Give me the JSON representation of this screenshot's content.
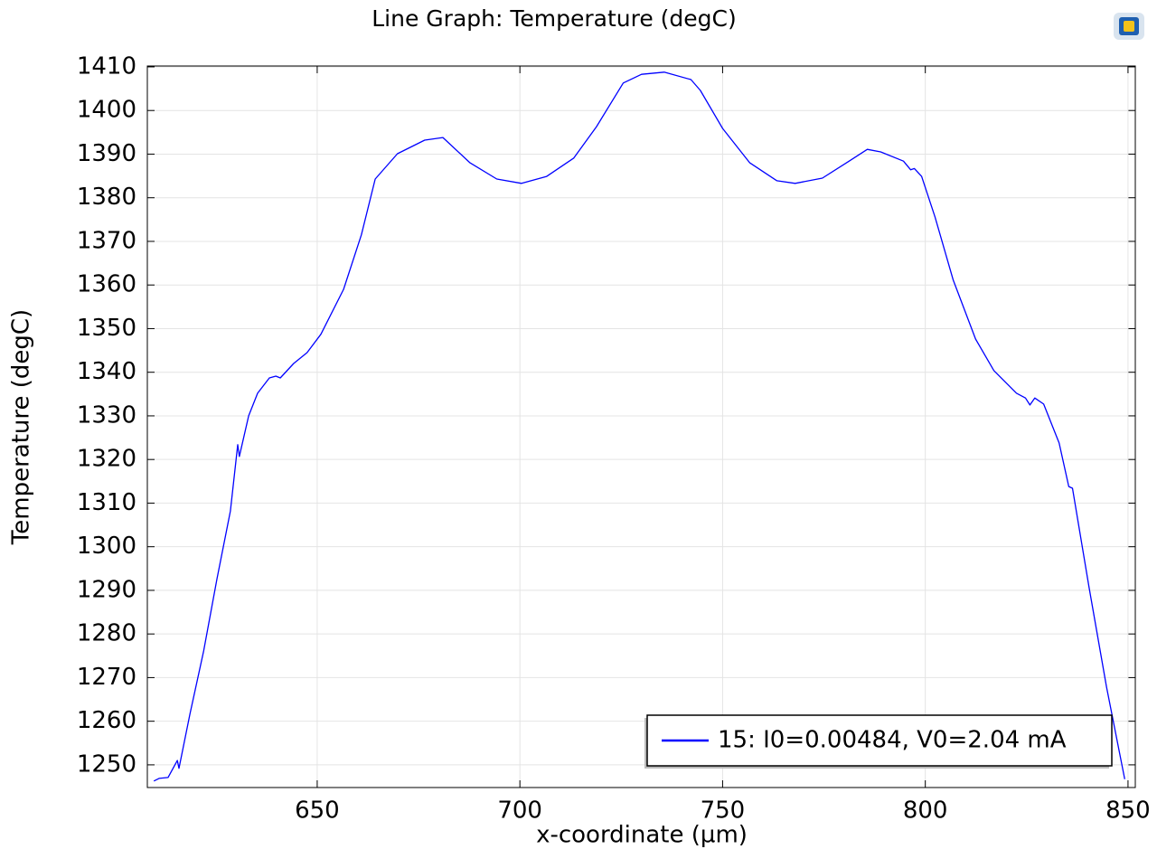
{
  "chart_data": {
    "type": "line",
    "title": "Line Graph: Temperature (degC)",
    "x_label": "x-coordinate (µm)",
    "y_label": "Temperature (degC)",
    "x": [
      609.7,
      611.0,
      613.2,
      615.5,
      615.9,
      618.6,
      622.0,
      625.3,
      628.6,
      630.2,
      630.4,
      630.8,
      633.1,
      635.3,
      638.2,
      639.8,
      640.9,
      644.2,
      647.5,
      650.9,
      656.5,
      660.9,
      664.3,
      669.8,
      676.5,
      681.0,
      687.7,
      694.3,
      700.4,
      706.6,
      713.3,
      718.9,
      725.5,
      730.0,
      735.6,
      742.2,
      744.5,
      750.0,
      756.7,
      763.4,
      767.9,
      774.6,
      781.2,
      785.7,
      789.0,
      794.6,
      796.4,
      797.3,
      799.1,
      802.4,
      806.9,
      812.4,
      816.9,
      822.5,
      824.7,
      825.8,
      827.0,
      829.2,
      833.0,
      835.4,
      836.3,
      840.4,
      844.7,
      849.2
    ],
    "series": [
      {
        "name": "15: I0=0.00484, V0=2.04 mA",
        "color": "#0000ff",
        "values": [
          1246.3,
          1246.9,
          1247.1,
          1251.0,
          1249.2,
          1261.6,
          1276.1,
          1292.7,
          1308.2,
          1321.7,
          1323.4,
          1320.7,
          1330.0,
          1335.2,
          1338.7,
          1339.1,
          1338.7,
          1342.0,
          1344.5,
          1348.7,
          1359.0,
          1371.5,
          1384.3,
          1390.1,
          1393.2,
          1393.8,
          1388.0,
          1384.3,
          1383.3,
          1384.9,
          1389.1,
          1396.3,
          1406.3,
          1408.3,
          1408.8,
          1407.1,
          1404.6,
          1395.9,
          1388.0,
          1383.9,
          1383.3,
          1384.5,
          1388.4,
          1391.1,
          1390.5,
          1388.4,
          1386.4,
          1386.7,
          1384.9,
          1375.6,
          1361.1,
          1347.6,
          1340.4,
          1335.2,
          1334.1,
          1332.5,
          1334.1,
          1332.7,
          1323.8,
          1313.8,
          1313.4,
          1290.6,
          1267.8,
          1246.7
        ]
      }
    ],
    "xlim": [
      608.1,
      851.8
    ],
    "ylim": [
      1244.8,
      1410.2
    ],
    "xticks": [
      650,
      700,
      750,
      800,
      850
    ],
    "yticks": [
      1250,
      1260,
      1270,
      1280,
      1290,
      1300,
      1310,
      1320,
      1330,
      1340,
      1350,
      1360,
      1370,
      1380,
      1390,
      1400,
      1410
    ],
    "grid": true,
    "legend_position": "lower right"
  }
}
